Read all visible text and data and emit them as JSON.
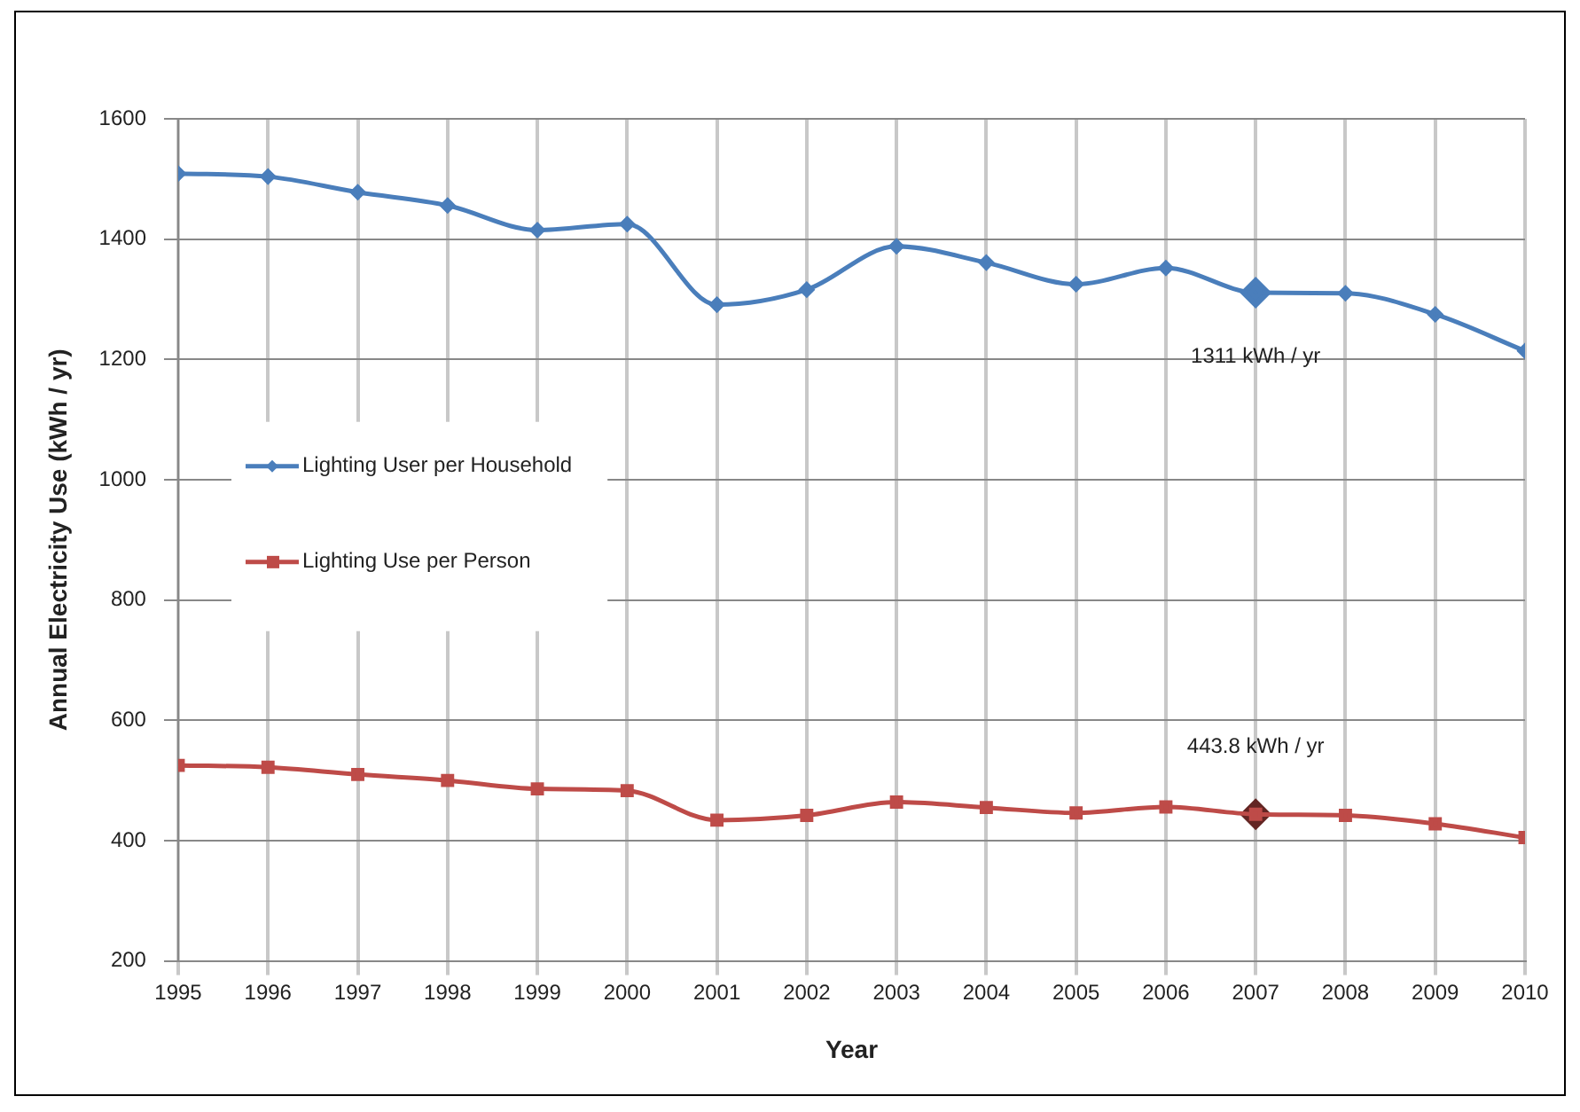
{
  "chart_data": {
    "type": "line",
    "xlabel": "Year",
    "ylabel": "Annual Electricity Use (kWh / yr)",
    "x": [
      1995,
      1996,
      1997,
      1998,
      1999,
      2000,
      2001,
      2002,
      2003,
      2004,
      2005,
      2006,
      2007,
      2008,
      2009,
      2010
    ],
    "series": [
      {
        "name": "Lighting User per Household",
        "color": "#4a7ebb",
        "marker": "diamond",
        "values": [
          1509,
          1504,
          1478,
          1456,
          1415,
          1425,
          1291,
          1316,
          1388,
          1361,
          1325,
          1352,
          1311,
          1310,
          1275,
          1214
        ]
      },
      {
        "name": "Lighting Use per Person",
        "color": "#be4b48",
        "marker": "square",
        "values": [
          525,
          522,
          510,
          500,
          486,
          483,
          434,
          442,
          464,
          455,
          446,
          456,
          443.8,
          442,
          428,
          405
        ]
      }
    ],
    "xlim": [
      1995,
      2010
    ],
    "xticks": [
      1995,
      1996,
      1997,
      1998,
      1999,
      2000,
      2001,
      2002,
      2003,
      2004,
      2005,
      2006,
      2007,
      2008,
      2009,
      2010
    ],
    "ylim": [
      200,
      1600
    ],
    "yticks": [
      200,
      400,
      600,
      800,
      1000,
      1200,
      1400,
      1600
    ],
    "grid": true,
    "legend": "left",
    "annotations": [
      {
        "text": "1311 kWh / yr",
        "x": 2007,
        "y": 1311
      },
      {
        "text": "443.8 kWh / yr",
        "x": 2007,
        "y": 443.8
      }
    ]
  }
}
